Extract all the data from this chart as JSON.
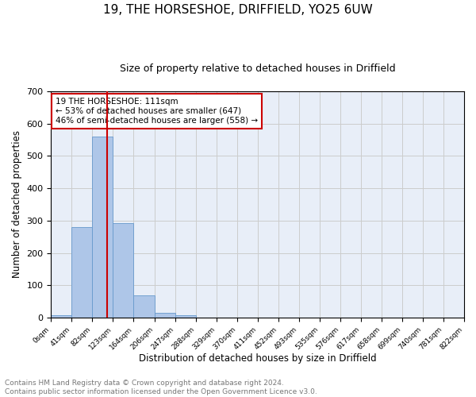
{
  "title1": "19, THE HORSESHOE, DRIFFIELD, YO25 6UW",
  "title2": "Size of property relative to detached houses in Driffield",
  "xlabel": "Distribution of detached houses by size in Driffield",
  "ylabel": "Number of detached properties",
  "bin_edges": [
    0,
    41,
    82,
    123,
    164,
    206,
    247,
    288,
    329,
    370,
    411,
    452,
    493,
    535,
    576,
    617,
    658,
    699,
    740,
    781,
    822
  ],
  "bar_heights": [
    8,
    280,
    560,
    291,
    68,
    14,
    8,
    0,
    0,
    0,
    0,
    0,
    0,
    0,
    0,
    0,
    0,
    0,
    0,
    0
  ],
  "bar_color": "#aec6e8",
  "bar_edge_color": "#6699cc",
  "vline_x": 111,
  "vline_color": "#cc0000",
  "annotation_text": "19 THE HORSESHOE: 111sqm\n← 53% of detached houses are smaller (647)\n46% of semi-detached houses are larger (558) →",
  "annotation_fontsize": 7.5,
  "annotation_box_color": "white",
  "annotation_box_edgecolor": "#cc0000",
  "tick_labels": [
    "0sqm",
    "41sqm",
    "82sqm",
    "123sqm",
    "164sqm",
    "206sqm",
    "247sqm",
    "288sqm",
    "329sqm",
    "370sqm",
    "411sqm",
    "452sqm",
    "493sqm",
    "535sqm",
    "576sqm",
    "617sqm",
    "658sqm",
    "699sqm",
    "740sqm",
    "781sqm",
    "822sqm"
  ],
  "ylim": [
    0,
    700
  ],
  "yticks": [
    0,
    100,
    200,
    300,
    400,
    500,
    600,
    700
  ],
  "grid_color": "#cccccc",
  "plot_bg_color": "#e8eef8",
  "footer_text": "Contains HM Land Registry data © Crown copyright and database right 2024.\nContains public sector information licensed under the Open Government Licence v3.0.",
  "title1_fontsize": 11,
  "title2_fontsize": 9,
  "xlabel_fontsize": 8.5,
  "ylabel_fontsize": 8.5,
  "footer_fontsize": 6.5,
  "tick_fontsize": 6.5,
  "ytick_fontsize": 8
}
